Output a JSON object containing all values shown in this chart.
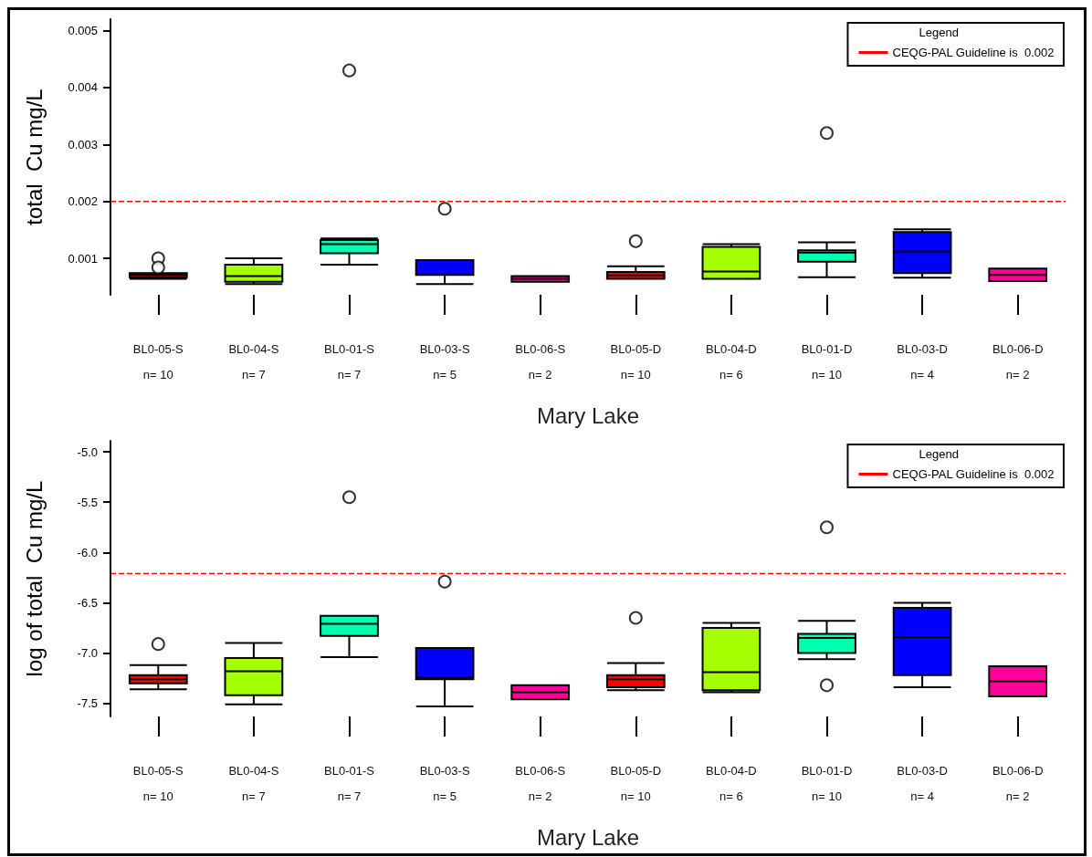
{
  "chart_data": [
    {
      "type": "box",
      "ylabel": "total  Cu mg/L",
      "xlabel": "Mary Lake",
      "legend_title": "Legend",
      "legend": "top right",
      "grid": false,
      "categories": [
        "BL0-05-S\n\nn= 10",
        "BL0-04-S\n\nn= 7",
        "BL0-01-S\n\nn= 7",
        "BL0-03-S\n\nn= 5",
        "BL0-06-S\n\nn= 2",
        "BL0-05-D\n\nn= 10",
        "BL0-04-D\n\nn= 6",
        "BL0-01-D\n\nn= 10",
        "BL0-03-D\n\nn= 4",
        "BL0-06-D\n\nn= 2"
      ],
      "colors": [
        "#ff0000",
        "#a6ff00",
        "#00ffb0",
        "#0000ff",
        "#ff0099",
        "#ff0000",
        "#a6ff00",
        "#00ffb0",
        "#0000ff",
        "#ff0099"
      ],
      "boxes": [
        {
          "low": 0.00064,
          "q1": 0.00067,
          "median": 0.00071,
          "q3": 0.00074,
          "high": 0.00074,
          "outliers": [
            0.001,
            0.00084
          ]
        },
        {
          "low": 0.00055,
          "q1": 0.00059,
          "median": 0.00069,
          "q3": 0.00089,
          "high": 0.001
        },
        {
          "low": 0.00089,
          "q1": 0.00109,
          "median": 0.00125,
          "q3": 0.00132,
          "high": 0.00135,
          "outliers": [
            0.0043
          ]
        },
        {
          "low": 0.00055,
          "q1": 0.00071,
          "median": 0.00071,
          "q3": 0.00097,
          "high": 0.00097,
          "outliers": [
            0.00187
          ]
        },
        {
          "low": 0.00059,
          "q1": 0.00059,
          "median": 0.00064,
          "q3": 0.00069,
          "high": 0.00069
        },
        {
          "low": 0.00064,
          "q1": 0.00064,
          "median": 0.0007,
          "q3": 0.00076,
          "high": 0.00086,
          "outliers": [
            0.0013
          ]
        },
        {
          "low": 0.00064,
          "q1": 0.00064,
          "median": 0.00077,
          "q3": 0.0012,
          "high": 0.00125
        },
        {
          "low": 0.00067,
          "q1": 0.00094,
          "median": 0.0011,
          "q3": 0.00114,
          "high": 0.00128,
          "outliers": [
            0.0032
          ]
        },
        {
          "low": 0.00066,
          "q1": 0.00074,
          "median": 0.00112,
          "q3": 0.00146,
          "high": 0.00151
        },
        {
          "low": 0.0006,
          "q1": 0.0006,
          "median": 0.00071,
          "q3": 0.00082,
          "high": 0.00082
        }
      ],
      "ylim": [
        0.00036,
        0.0052
      ],
      "yticks": [
        0.001,
        0.002,
        0.003,
        0.004,
        0.005
      ],
      "ref_lines": [
        {
          "axis": "y",
          "value": 0.002,
          "label": "CEQG-PAL Guideline is  0.002",
          "color": "#ff0000",
          "line_style": "dashed"
        }
      ]
    },
    {
      "type": "box",
      "ylabel": "log of total  Cu mg/L",
      "xlabel": "Mary Lake",
      "legend_title": "Legend",
      "legend": "top right",
      "grid": false,
      "categories": [
        "BL0-05-S\n\nn= 10",
        "BL0-04-S\n\nn= 7",
        "BL0-01-S\n\nn= 7",
        "BL0-03-S\n\nn= 5",
        "BL0-06-S\n\nn= 2",
        "BL0-05-D\n\nn= 10",
        "BL0-04-D\n\nn= 6",
        "BL0-01-D\n\nn= 10",
        "BL0-03-D\n\nn= 4",
        "BL0-06-D\n\nn= 2"
      ],
      "colors": [
        "#ff0000",
        "#a6ff00",
        "#00ffb0",
        "#0000ff",
        "#ff0099",
        "#ff0000",
        "#a6ff00",
        "#00ffb0",
        "#0000ff",
        "#ff0099"
      ],
      "boxes": [
        {
          "low": -7.36,
          "q1": -7.3,
          "median": -7.26,
          "q3": -7.22,
          "high": -7.12,
          "outliers": [
            -6.91
          ]
        },
        {
          "low": -7.51,
          "q1": -7.42,
          "median": -7.18,
          "q3": -7.05,
          "high": -6.9
        },
        {
          "low": -7.04,
          "q1": -6.83,
          "median": -6.71,
          "q3": -6.63,
          "high": -6.63,
          "outliers": [
            -5.45
          ]
        },
        {
          "low": -7.53,
          "q1": -7.26,
          "median": -7.24,
          "q3": -6.95,
          "high": -6.95,
          "outliers": [
            -6.29
          ]
        },
        {
          "low": -7.46,
          "q1": -7.46,
          "median": -7.39,
          "q3": -7.32,
          "high": -7.32
        },
        {
          "low": -7.37,
          "q1": -7.34,
          "median": -7.26,
          "q3": -7.22,
          "high": -7.1,
          "outliers": [
            -6.65
          ]
        },
        {
          "low": -7.39,
          "q1": -7.37,
          "median": -7.19,
          "q3": -6.75,
          "high": -6.7
        },
        {
          "low": -7.06,
          "q1": -7.0,
          "median": -6.85,
          "q3": -6.81,
          "high": -6.68,
          "outliers": [
            -5.75,
            -7.32
          ]
        },
        {
          "low": -7.34,
          "q1": -7.22,
          "median": -6.84,
          "q3": -6.55,
          "high": -6.5
        },
        {
          "low": -7.43,
          "q1": -7.43,
          "median": -7.28,
          "q3": -7.13,
          "high": -7.13
        }
      ],
      "ylim": [
        -7.63,
        -4.89
      ],
      "yticks": [
        {
          "value": -7.5,
          "label": "-7.5"
        },
        {
          "value": -7.0,
          "label": "-7.0"
        },
        {
          "value": -6.5,
          "label": "-6.5"
        },
        {
          "value": -6.0,
          "label": "-6.0"
        },
        {
          "value": -5.5,
          "label": "-5.5"
        },
        {
          "value": -5.0,
          "label": "-5.0"
        }
      ],
      "ref_lines": [
        {
          "axis": "y",
          "value": -6.21,
          "label": "CEQG-PAL Guideline is  0.002",
          "color": "#ff0000",
          "line_style": "dashed"
        }
      ]
    }
  ]
}
